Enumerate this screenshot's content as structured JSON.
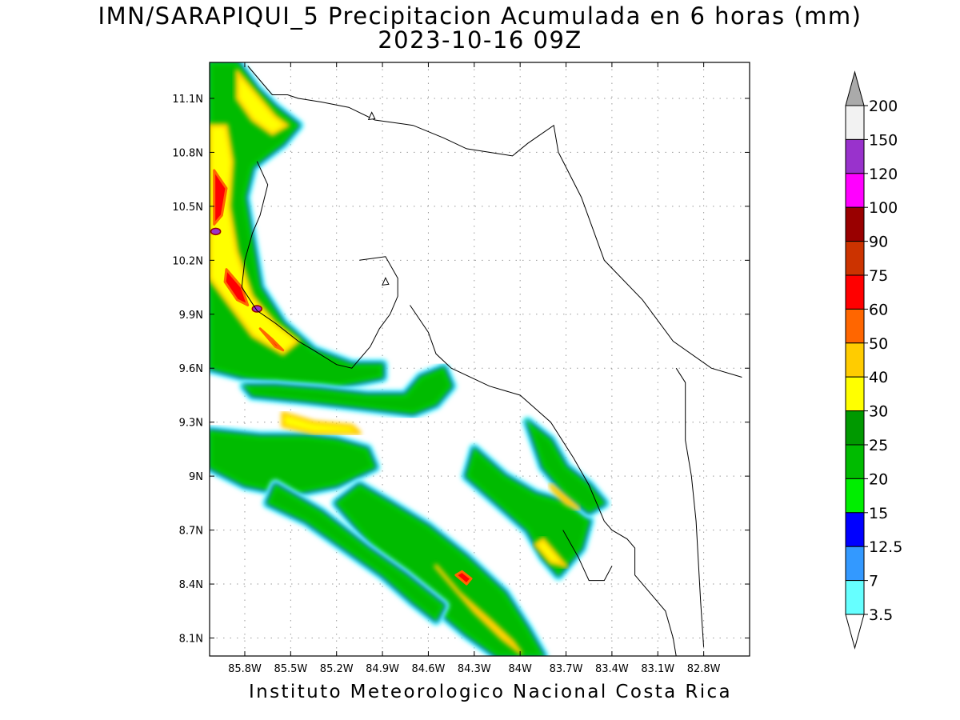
{
  "title": {
    "line1": "IMN/SARAPIQUI_5 Precipitacion Acumulada en 6 horas (mm)",
    "line2": "2023-10-16 09Z"
  },
  "footer": "Instituto Meteorologico Nacional Costa Rica",
  "map": {
    "lon_range": [
      -86.03,
      -82.5
    ],
    "lat_range": [
      8.0,
      11.3
    ],
    "lon_ticks": [
      {
        "value": -85.8,
        "label": "85.8W"
      },
      {
        "value": -85.5,
        "label": "85.5W"
      },
      {
        "value": -85.2,
        "label": "85.2W"
      },
      {
        "value": -84.9,
        "label": "84.9W"
      },
      {
        "value": -84.6,
        "label": "84.6W"
      },
      {
        "value": -84.3,
        "label": "84.3W"
      },
      {
        "value": -84.0,
        "label": "84W"
      },
      {
        "value": -83.7,
        "label": "83.7W"
      },
      {
        "value": -83.4,
        "label": "83.4W"
      },
      {
        "value": -83.1,
        "label": "83.1W"
      },
      {
        "value": -82.8,
        "label": "82.8W"
      }
    ],
    "lat_ticks": [
      {
        "value": 8.1,
        "label": "8.1N"
      },
      {
        "value": 8.4,
        "label": "8.4N"
      },
      {
        "value": 8.7,
        "label": "8.7N"
      },
      {
        "value": 9.0,
        "label": "9N"
      },
      {
        "value": 9.3,
        "label": "9.3N"
      },
      {
        "value": 9.6,
        "label": "9.6N"
      },
      {
        "value": 9.9,
        "label": "9.9N"
      },
      {
        "value": 10.2,
        "label": "10.2N"
      },
      {
        "value": 10.5,
        "label": "10.5N"
      },
      {
        "value": 10.8,
        "label": "10.8N"
      },
      {
        "value": 11.1,
        "label": "11.1N"
      }
    ],
    "grid": "dotted",
    "coastline_color": "#000000",
    "precip_bands": [
      {
        "points": [
          [
            -86.03,
            11.3
          ],
          [
            -85.85,
            11.3
          ],
          [
            -85.72,
            11.15
          ],
          [
            -85.6,
            11.05
          ],
          [
            -85.45,
            10.95
          ],
          [
            -85.55,
            10.85
          ],
          [
            -85.75,
            10.72
          ],
          [
            -85.8,
            10.55
          ],
          [
            -85.75,
            10.3
          ],
          [
            -85.7,
            10.05
          ],
          [
            -85.55,
            9.85
          ],
          [
            -85.35,
            9.7
          ],
          [
            -85.1,
            9.62
          ],
          [
            -84.9,
            9.62
          ],
          [
            -84.9,
            9.55
          ],
          [
            -85.2,
            9.5
          ],
          [
            -85.5,
            9.52
          ],
          [
            -85.8,
            9.55
          ],
          [
            -86.03,
            9.6
          ]
        ]
      },
      {
        "points": [
          [
            -85.75,
            9.45
          ],
          [
            -85.4,
            9.42
          ],
          [
            -85.0,
            9.38
          ],
          [
            -84.7,
            9.35
          ],
          [
            -84.55,
            9.4
          ],
          [
            -84.45,
            9.5
          ],
          [
            -84.5,
            9.6
          ],
          [
            -84.65,
            9.55
          ],
          [
            -84.75,
            9.45
          ],
          [
            -85.0,
            9.45
          ],
          [
            -85.3,
            9.48
          ],
          [
            -85.6,
            9.5
          ],
          [
            -85.8,
            9.5
          ]
        ]
      },
      {
        "points": [
          [
            -86.03,
            9.25
          ],
          [
            -85.7,
            9.22
          ],
          [
            -85.4,
            9.22
          ],
          [
            -85.2,
            9.2
          ],
          [
            -85.0,
            9.15
          ],
          [
            -84.95,
            9.05
          ],
          [
            -85.2,
            8.95
          ],
          [
            -85.5,
            8.9
          ],
          [
            -85.8,
            8.95
          ],
          [
            -86.03,
            9.05
          ]
        ]
      },
      {
        "points": [
          [
            -85.05,
            8.95
          ],
          [
            -84.85,
            8.85
          ],
          [
            -84.6,
            8.72
          ],
          [
            -84.35,
            8.55
          ],
          [
            -84.1,
            8.35
          ],
          [
            -83.95,
            8.15
          ],
          [
            -83.85,
            8.0
          ],
          [
            -84.15,
            8.0
          ],
          [
            -84.35,
            8.12
          ],
          [
            -84.6,
            8.3
          ],
          [
            -84.85,
            8.5
          ],
          [
            -85.05,
            8.7
          ],
          [
            -85.2,
            8.85
          ]
        ]
      },
      {
        "points": [
          [
            -84.3,
            9.15
          ],
          [
            -84.1,
            9.0
          ],
          [
            -83.9,
            8.9
          ],
          [
            -83.7,
            8.85
          ],
          [
            -83.55,
            8.75
          ],
          [
            -83.6,
            8.6
          ],
          [
            -83.75,
            8.45
          ],
          [
            -83.85,
            8.55
          ],
          [
            -83.95,
            8.7
          ],
          [
            -84.15,
            8.85
          ],
          [
            -84.35,
            9.0
          ]
        ]
      },
      {
        "points": [
          [
            -83.95,
            9.3
          ],
          [
            -83.8,
            9.2
          ],
          [
            -83.7,
            9.05
          ],
          [
            -83.55,
            8.95
          ],
          [
            -83.45,
            8.85
          ],
          [
            -83.55,
            8.8
          ],
          [
            -83.7,
            8.9
          ],
          [
            -83.85,
            9.05
          ]
        ]
      },
      {
        "points": [
          [
            -85.65,
            8.85
          ],
          [
            -85.4,
            8.75
          ],
          [
            -85.15,
            8.6
          ],
          [
            -84.9,
            8.45
          ],
          [
            -84.7,
            8.3
          ],
          [
            -84.55,
            8.2
          ],
          [
            -84.5,
            8.28
          ],
          [
            -84.75,
            8.45
          ],
          [
            -85.0,
            8.6
          ],
          [
            -85.3,
            8.8
          ],
          [
            -85.6,
            8.95
          ]
        ]
      }
    ],
    "precip_cores": [
      {
        "points": [
          [
            -86.03,
            10.95
          ],
          [
            -85.92,
            10.95
          ],
          [
            -85.88,
            10.75
          ],
          [
            -85.9,
            10.5
          ],
          [
            -85.85,
            10.25
          ],
          [
            -85.75,
            10.0
          ],
          [
            -85.6,
            9.85
          ],
          [
            -85.45,
            9.75
          ],
          [
            -85.55,
            9.68
          ],
          [
            -85.75,
            9.78
          ],
          [
            -85.9,
            9.95
          ],
          [
            -86.03,
            10.1
          ]
        ]
      },
      {
        "points": [
          [
            -85.85,
            11.25
          ],
          [
            -85.72,
            11.12
          ],
          [
            -85.6,
            11.0
          ],
          [
            -85.52,
            10.95
          ],
          [
            -85.62,
            10.9
          ],
          [
            -85.75,
            10.98
          ],
          [
            -85.85,
            11.1
          ]
        ]
      },
      {
        "points": [
          [
            -85.55,
            9.35
          ],
          [
            -85.35,
            9.3
          ],
          [
            -85.1,
            9.28
          ],
          [
            -85.05,
            9.24
          ],
          [
            -85.35,
            9.24
          ],
          [
            -85.55,
            9.28
          ]
        ]
      },
      {
        "points": [
          [
            -84.55,
            8.5
          ],
          [
            -84.4,
            8.35
          ],
          [
            -84.2,
            8.2
          ],
          [
            -84.05,
            8.08
          ],
          [
            -84.0,
            8.02
          ],
          [
            -84.12,
            8.1
          ],
          [
            -84.3,
            8.25
          ],
          [
            -84.45,
            8.4
          ]
        ]
      },
      {
        "points": [
          [
            -83.85,
            8.65
          ],
          [
            -83.75,
            8.55
          ],
          [
            -83.7,
            8.5
          ],
          [
            -83.8,
            8.52
          ],
          [
            -83.9,
            8.62
          ]
        ]
      },
      {
        "points": [
          [
            -83.8,
            8.95
          ],
          [
            -83.7,
            8.88
          ],
          [
            -83.62,
            8.82
          ],
          [
            -83.7,
            8.85
          ],
          [
            -83.78,
            8.92
          ]
        ]
      }
    ],
    "precip_hotspots": [
      {
        "points": [
          [
            -86.0,
            10.7
          ],
          [
            -85.92,
            10.6
          ],
          [
            -85.95,
            10.45
          ],
          [
            -86.0,
            10.4
          ]
        ]
      },
      {
        "points": [
          [
            -85.92,
            10.15
          ],
          [
            -85.82,
            10.05
          ],
          [
            -85.78,
            9.95
          ],
          [
            -85.85,
            9.98
          ],
          [
            -85.93,
            10.08
          ]
        ]
      },
      {
        "points": [
          [
            -85.7,
            9.82
          ],
          [
            -85.6,
            9.72
          ],
          [
            -85.55,
            9.7
          ],
          [
            -85.62,
            9.76
          ]
        ]
      },
      {
        "points": [
          [
            -84.42,
            8.45
          ],
          [
            -84.35,
            8.4
          ],
          [
            -84.32,
            8.43
          ],
          [
            -84.38,
            8.47
          ]
        ]
      }
    ],
    "precip_peaks": [
      {
        "lon": -85.99,
        "lat": 10.36
      },
      {
        "lon": -85.72,
        "lat": 9.93
      }
    ],
    "coastlines": [
      [
        [
          -85.78,
          11.28
        ],
        [
          -85.72,
          11.22
        ],
        [
          -85.68,
          11.18
        ],
        [
          -85.62,
          11.12
        ],
        [
          -85.52,
          11.12
        ],
        [
          -85.45,
          11.1
        ],
        [
          -85.3,
          11.08
        ],
        [
          -85.12,
          11.05
        ],
        [
          -84.95,
          10.98
        ],
        [
          -84.7,
          10.95
        ],
        [
          -84.5,
          10.88
        ],
        [
          -84.35,
          10.82
        ],
        [
          -84.2,
          10.8
        ],
        [
          -84.05,
          10.78
        ],
        [
          -83.95,
          10.85
        ],
        [
          -83.78,
          10.95
        ],
        [
          -83.75,
          10.8
        ]
      ],
      [
        [
          -83.75,
          10.8
        ],
        [
          -83.6,
          10.55
        ],
        [
          -83.45,
          10.2
        ],
        [
          -83.2,
          9.98
        ],
        [
          -83.0,
          9.75
        ],
        [
          -82.75,
          9.6
        ],
        [
          -82.55,
          9.55
        ]
      ],
      [
        [
          -85.72,
          10.75
        ],
        [
          -85.65,
          10.62
        ],
        [
          -85.7,
          10.45
        ],
        [
          -85.75,
          10.35
        ],
        [
          -85.8,
          10.2
        ],
        [
          -85.82,
          10.05
        ],
        [
          -85.72,
          9.92
        ],
        [
          -85.6,
          9.85
        ],
        [
          -85.45,
          9.75
        ],
        [
          -85.35,
          9.7
        ],
        [
          -85.2,
          9.62
        ],
        [
          -85.1,
          9.6
        ],
        [
          -84.98,
          9.72
        ]
      ],
      [
        [
          -84.98,
          9.72
        ],
        [
          -84.92,
          9.82
        ],
        [
          -84.85,
          9.9
        ],
        [
          -84.8,
          10.0
        ],
        [
          -84.8,
          10.1
        ],
        [
          -84.88,
          10.22
        ],
        [
          -85.05,
          10.2
        ]
      ],
      [
        [
          -84.72,
          9.95
        ],
        [
          -84.6,
          9.8
        ],
        [
          -84.55,
          9.68
        ],
        [
          -84.45,
          9.6
        ],
        [
          -84.2,
          9.5
        ],
        [
          -84.0,
          9.45
        ],
        [
          -83.8,
          9.3
        ],
        [
          -83.65,
          9.1
        ],
        [
          -83.55,
          8.95
        ],
        [
          -83.5,
          8.85
        ],
        [
          -83.45,
          8.75
        ]
      ],
      [
        [
          -83.45,
          8.75
        ],
        [
          -83.4,
          8.7
        ],
        [
          -83.3,
          8.65
        ],
        [
          -83.25,
          8.6
        ],
        [
          -83.25,
          8.45
        ],
        [
          -83.15,
          8.35
        ],
        [
          -83.05,
          8.25
        ],
        [
          -83.0,
          8.1
        ],
        [
          -82.98,
          8.0
        ]
      ],
      [
        [
          -83.72,
          8.7
        ],
        [
          -83.62,
          8.55
        ],
        [
          -83.55,
          8.42
        ],
        [
          -83.45,
          8.42
        ],
        [
          -83.4,
          8.5
        ]
      ],
      [
        [
          -82.98,
          9.6
        ],
        [
          -82.92,
          9.52
        ],
        [
          -82.92,
          9.2
        ],
        [
          -82.88,
          9.0
        ],
        [
          -82.85,
          8.75
        ],
        [
          -82.82,
          8.3
        ],
        [
          -82.8,
          8.05
        ]
      ]
    ],
    "islands": [
      {
        "lon": -84.97,
        "lat": 11.0
      },
      {
        "lon": -84.88,
        "lat": 10.08
      }
    ]
  },
  "colorbar": {
    "labels": [
      "200",
      "150",
      "120",
      "100",
      "90",
      "75",
      "60",
      "50",
      "40",
      "30",
      "25",
      "20",
      "15",
      "12.5",
      "7",
      "3.5"
    ],
    "colors": [
      "#f2f2f2",
      "#9932cc",
      "#ff00ff",
      "#990000",
      "#cc3300",
      "#ff0000",
      "#ff6600",
      "#ffcc00",
      "#ffff00",
      "#009900",
      "#00bb00",
      "#00ee00",
      "#0000ff",
      "#3399ff",
      "#66ffff"
    ],
    "top_arrow_color": "#aaaaaa",
    "bottom_arrow_color": "#ffffff"
  }
}
